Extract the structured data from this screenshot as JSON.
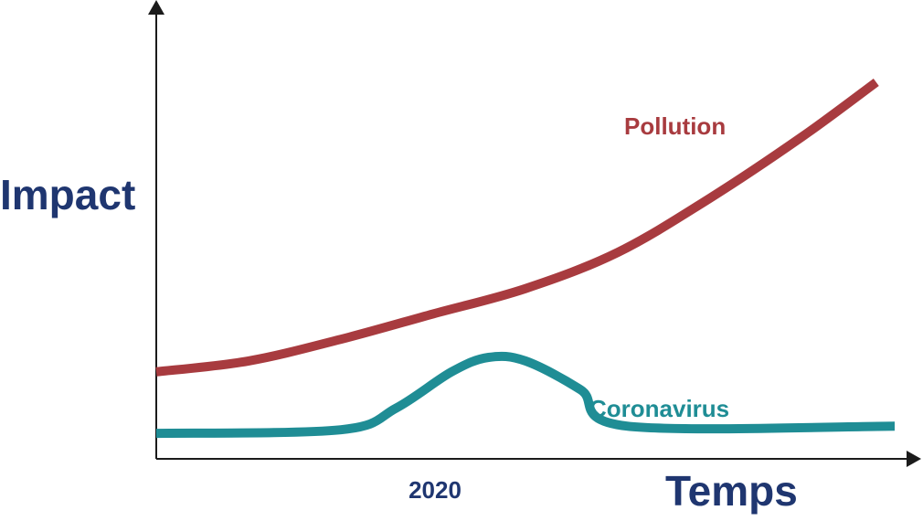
{
  "chart_data": {
    "type": "line",
    "ylabel": "Impact",
    "xlabel": "Temps",
    "x_ticks": [
      {
        "x": 2020,
        "label": "2020"
      }
    ],
    "xlim": [
      2016,
      2024
    ],
    "ylim": [
      0,
      100
    ],
    "grid": false,
    "legend": "inline labels",
    "series": [
      {
        "name": "Pollution",
        "color": "#a83b3f",
        "points": [
          {
            "x": 2016,
            "y": 20
          },
          {
            "x": 2017,
            "y": 23
          },
          {
            "x": 2018,
            "y": 29
          },
          {
            "x": 2019,
            "y": 36
          },
          {
            "x": 2020,
            "y": 43
          },
          {
            "x": 2021,
            "y": 53
          },
          {
            "x": 2022,
            "y": 68
          },
          {
            "x": 2023,
            "y": 85
          },
          {
            "x": 2023.8,
            "y": 100
          }
        ]
      },
      {
        "name": "Coronavirus",
        "color": "#1f8d95",
        "points": [
          {
            "x": 2016,
            "y": 3
          },
          {
            "x": 2018,
            "y": 4
          },
          {
            "x": 2018.6,
            "y": 10
          },
          {
            "x": 2019.2,
            "y": 20
          },
          {
            "x": 2019.6,
            "y": 24
          },
          {
            "x": 2020,
            "y": 23
          },
          {
            "x": 2020.6,
            "y": 15
          },
          {
            "x": 2021.1,
            "y": 5
          },
          {
            "x": 2024,
            "y": 5
          }
        ]
      }
    ]
  }
}
